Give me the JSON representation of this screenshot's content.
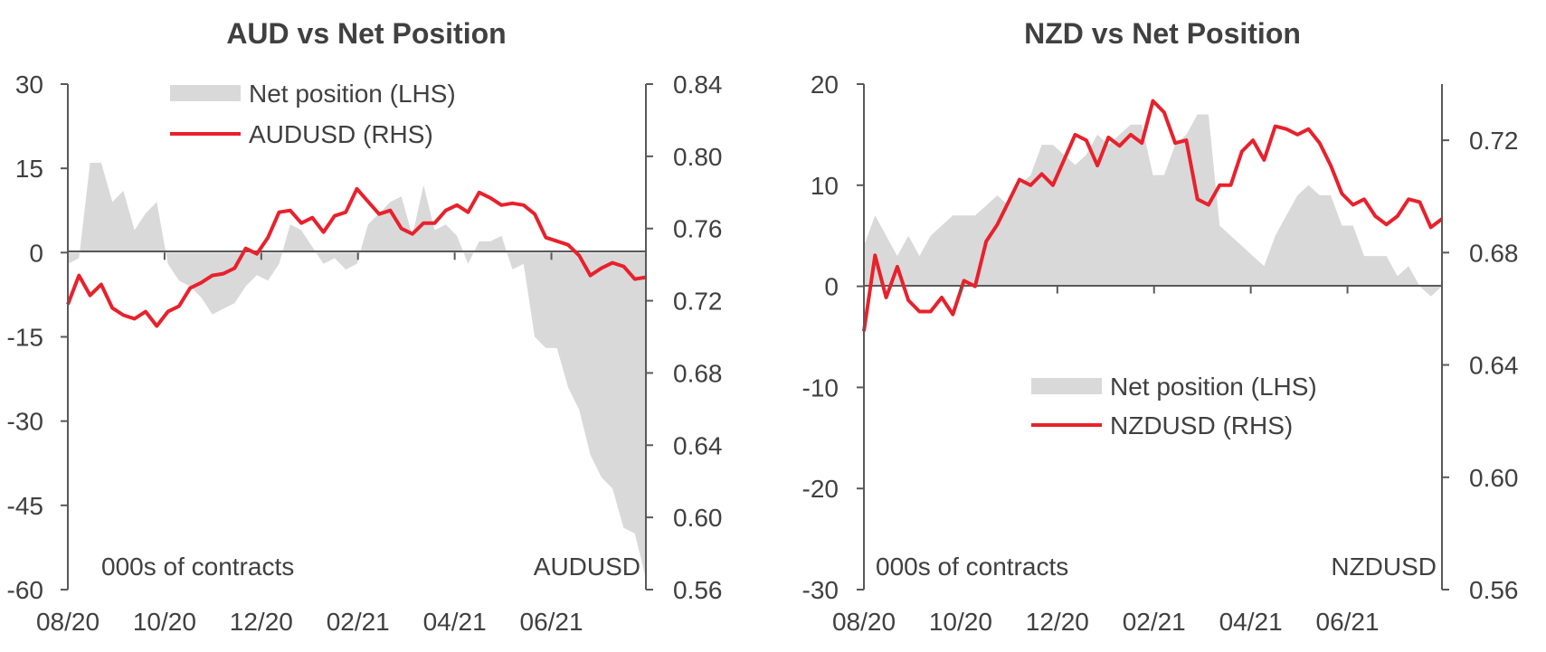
{
  "chart_data": [
    {
      "type": "area+line",
      "title": "AUD vs Net Position",
      "left_axis": {
        "ticks": [
          "30",
          "15",
          "0",
          "-15",
          "-30",
          "-45",
          "-60"
        ],
        "values": [
          30,
          15,
          0,
          -15,
          -30,
          -45,
          -60
        ],
        "ylim": [
          -60,
          30
        ]
      },
      "right_axis": {
        "ticks": [
          "0.84",
          "0.80",
          "0.76",
          "0.72",
          "0.68",
          "0.64",
          "0.60",
          "0.56"
        ],
        "values": [
          0.84,
          0.8,
          0.76,
          0.72,
          0.68,
          0.64,
          0.6,
          0.56
        ],
        "ylim": [
          0.56,
          0.84
        ]
      },
      "x_ticks": [
        "08/20",
        "10/20",
        "12/20",
        "02/21",
        "04/21",
        "06/21"
      ],
      "x_tick_index": [
        0,
        8.7,
        17.4,
        26.1,
        34.8,
        43.5
      ],
      "bottom_left_note": "000s of contracts",
      "bottom_right_note": "AUDUSD",
      "legend_position": "top-center",
      "series": [
        {
          "name": "Net position (LHS)",
          "kind": "area",
          "color": "#d9d9d9",
          "axis": "left",
          "values": [
            -2,
            -1,
            16,
            16,
            9,
            11,
            4,
            7,
            9,
            -2,
            -5,
            -6,
            -8,
            -11,
            -10,
            -9,
            -6,
            -4,
            -5,
            -2,
            5,
            4,
            1,
            -2,
            -1,
            -3,
            -2,
            5,
            7,
            9,
            10,
            3,
            12,
            4,
            5,
            3,
            -2,
            2,
            2,
            3,
            -3,
            -2,
            -15,
            -17,
            -17,
            -24,
            -28,
            -36,
            -40,
            -42,
            -49,
            -50,
            -58
          ]
        },
        {
          "name": "AUDUSD (RHS)",
          "kind": "line",
          "color": "#e8212c",
          "axis": "right",
          "values": [
            0.718,
            0.734,
            0.723,
            0.729,
            0.716,
            0.712,
            0.71,
            0.714,
            0.706,
            0.714,
            0.717,
            0.727,
            0.73,
            0.734,
            0.735,
            0.738,
            0.749,
            0.746,
            0.755,
            0.769,
            0.77,
            0.763,
            0.766,
            0.758,
            0.767,
            0.769,
            0.782,
            0.775,
            0.768,
            0.77,
            0.76,
            0.757,
            0.763,
            0.763,
            0.77,
            0.773,
            0.769,
            0.78,
            0.777,
            0.773,
            0.774,
            0.773,
            0.768,
            0.755,
            0.753,
            0.751,
            0.745,
            0.734,
            0.738,
            0.741,
            0.739,
            0.732,
            0.733
          ]
        }
      ]
    },
    {
      "type": "area+line",
      "title": "NZD vs Net Position",
      "left_axis": {
        "ticks": [
          "20",
          "10",
          "0",
          "-10",
          "-20",
          "-30"
        ],
        "values": [
          20,
          10,
          0,
          -10,
          -20,
          -30
        ],
        "ylim": [
          -30,
          20
        ]
      },
      "right_axis": {
        "ticks": [
          "0.72",
          "0.68",
          "0.64",
          "0.60",
          "0.56"
        ],
        "values": [
          0.72,
          0.68,
          0.64,
          0.6,
          0.56
        ],
        "ylim": [
          0.56,
          0.74
        ]
      },
      "x_ticks": [
        "08/20",
        "10/20",
        "12/20",
        "02/21",
        "04/21",
        "06/21"
      ],
      "x_tick_index": [
        0,
        8.7,
        17.4,
        26.1,
        34.8,
        43.5
      ],
      "bottom_left_note": "000s of contracts",
      "bottom_right_note": "NZDUSD",
      "legend_position": "center-right",
      "series": [
        {
          "name": "Net position (LHS)",
          "kind": "area",
          "color": "#d9d9d9",
          "axis": "left",
          "values": [
            4,
            7,
            5,
            3,
            5,
            3,
            5,
            6,
            7,
            7,
            7,
            8,
            9,
            8,
            10,
            11,
            14,
            14,
            13,
            12,
            13,
            15,
            14,
            15,
            16,
            16,
            11,
            11,
            14,
            15,
            17,
            17,
            6,
            5,
            4,
            3,
            2,
            5,
            7,
            9,
            10,
            9,
            9,
            6,
            6,
            3,
            3,
            3,
            1,
            2,
            0,
            -1,
            0
          ]
        },
        {
          "name": "NZDUSD (RHS)",
          "kind": "line",
          "color": "#e8212c",
          "axis": "right",
          "values": [
            0.652,
            0.679,
            0.664,
            0.675,
            0.663,
            0.659,
            0.659,
            0.664,
            0.658,
            0.67,
            0.668,
            0.684,
            0.69,
            0.698,
            0.706,
            0.704,
            0.708,
            0.704,
            0.713,
            0.722,
            0.72,
            0.711,
            0.721,
            0.718,
            0.722,
            0.719,
            0.734,
            0.73,
            0.719,
            0.72,
            0.699,
            0.697,
            0.704,
            0.704,
            0.716,
            0.72,
            0.713,
            0.725,
            0.724,
            0.722,
            0.724,
            0.719,
            0.711,
            0.701,
            0.697,
            0.699,
            0.693,
            0.69,
            0.693,
            0.699,
            0.698,
            0.689,
            0.692
          ]
        }
      ]
    }
  ]
}
